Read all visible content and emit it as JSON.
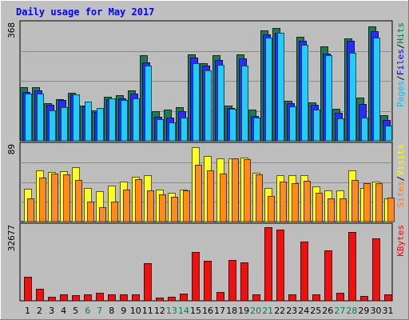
{
  "chart_data": {
    "type": "bar",
    "title": "Daily usage for May 2017",
    "days": [
      "1",
      "2",
      "3",
      "4",
      "5",
      "6",
      "7",
      "8",
      "9",
      "10",
      "11",
      "12",
      "13",
      "14",
      "15",
      "16",
      "17",
      "18",
      "19",
      "20",
      "21",
      "22",
      "23",
      "24",
      "25",
      "26",
      "27",
      "28",
      "29",
      "30",
      "31"
    ],
    "weekend_days": [
      "6",
      "7",
      "13",
      "14",
      "20",
      "21",
      "27",
      "28"
    ],
    "panels": [
      {
        "id": "hits_panel",
        "ymax_label": "368",
        "ymax": 368,
        "legend": [
          {
            "label": "Pages",
            "color": "#00C0FF"
          },
          {
            "label": "/",
            "color": "#000000"
          },
          {
            "label": "Files",
            "color": "#0000FF"
          },
          {
            "label": "/",
            "color": "#000000"
          },
          {
            "label": "Hits",
            "color": "#008040"
          }
        ],
        "series": [
          {
            "name": "Hits",
            "color": "#1F7A50",
            "values": [
              168,
              168,
              118,
              130,
              150,
              112,
              95,
              138,
              143,
              160,
              270,
              93,
              99,
              106,
              273,
              244,
              269,
              112,
              273,
              98,
              349,
              355,
              125,
              327,
              121,
              298,
              100,
              323,
              135,
              360,
              80
            ]
          },
          {
            "name": "Files",
            "color": "#2B2BFF",
            "values": [
              153,
              158,
              114,
              128,
              145,
              108,
              91,
              130,
              133,
              148,
              248,
              75,
              72,
              92,
              262,
              236,
              255,
              104,
              260,
              78,
              334,
              340,
              118,
              314,
              114,
              275,
              88,
              315,
              115,
              346,
              66
            ]
          },
          {
            "name": "Pages",
            "color": "#22CCFF",
            "values": [
              149,
              149,
              97,
              105,
              145,
              123,
              104,
              134,
              128,
              134,
              236,
              67,
              58,
              72,
              245,
              223,
              240,
              100,
              237,
              74,
              325,
              341,
              109,
              302,
              99,
              270,
              70,
              278,
              74,
              325,
              47
            ]
          }
        ]
      },
      {
        "id": "visits_panel",
        "ymax_label": "89",
        "ymax": 89,
        "legend": [
          {
            "label": "Sites",
            "color": "#FF8000"
          },
          {
            "label": "/",
            "color": "#000000"
          },
          {
            "label": "Visits",
            "color": "#FFFF00"
          }
        ],
        "series": [
          {
            "name": "Visits",
            "color": "#FFFF22",
            "values": [
              39,
              61,
              59,
              60,
              64,
              40,
              36,
              43,
              47,
              53,
              55,
              38,
              34,
              38,
              88,
              78,
              75,
              75,
              76,
              58,
              40,
              55,
              55,
              55,
              42,
              37,
              37,
              61,
              40,
              47,
              27
            ]
          },
          {
            "name": "Sites",
            "color": "#FF8C1A",
            "values": [
              27,
              52,
              57,
              56,
              49,
              24,
              17,
              24,
              38,
              50,
              37,
              32,
              29,
              37,
              67,
              61,
              57,
              75,
              74,
              56,
              30,
              47,
              45,
              48,
              34,
              27,
              27,
              49,
              45,
              45,
              28
            ]
          }
        ]
      },
      {
        "id": "kbytes_panel",
        "ymax_label": "32677",
        "ymax": 32677,
        "legend": [
          {
            "label": "KBytes",
            "color": "#FF0000"
          }
        ],
        "series": [
          {
            "name": "KBytes",
            "color": "#EE1111",
            "values": [
              10700,
              5360,
              1640,
              2940,
              2600,
              2900,
              3560,
              2920,
              2960,
              2900,
              16800,
              1380,
              1740,
              3120,
              21500,
              17700,
              3880,
              18000,
              16900,
              2720,
              32677,
              31500,
              2860,
              26200,
              2700,
              22200,
              3550,
              30500,
              2180,
              27600,
              2800
            ]
          }
        ]
      }
    ]
  }
}
